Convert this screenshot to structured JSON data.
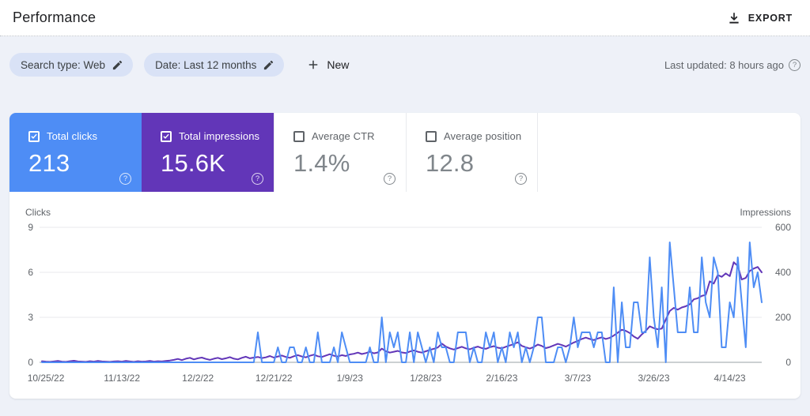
{
  "header": {
    "title": "Performance",
    "export_label": "EXPORT"
  },
  "filters": {
    "search_type_chip": "Search type: Web",
    "date_chip": "Date: Last 12 months",
    "new_label": "New",
    "last_updated": "Last updated: 8 hours ago"
  },
  "metric_cards": [
    {
      "label": "Total clicks",
      "value": "213",
      "checked": true,
      "color": "#4e8df5"
    },
    {
      "label": "Total impressions",
      "value": "15.6K",
      "checked": true,
      "color": "#6236b8"
    },
    {
      "label": "Average CTR",
      "value": "1.4%",
      "checked": false
    },
    {
      "label": "Average position",
      "value": "12.8",
      "checked": false
    }
  ],
  "chart_data": {
    "type": "line",
    "left_axis": {
      "label": "Clicks",
      "ticks": [
        9,
        6,
        3,
        0
      ],
      "max": 9
    },
    "right_axis": {
      "label": "Impressions",
      "ticks": [
        600,
        400,
        200,
        0
      ],
      "max": 600
    },
    "x_ticks": {
      "indices": [
        1,
        20,
        39,
        58,
        77,
        96,
        115,
        134,
        153,
        172
      ],
      "labels": [
        "10/25/22",
        "11/13/22",
        "12/2/22",
        "12/21/22",
        "1/9/23",
        "1/28/23",
        "2/16/23",
        "3/7/23",
        "3/26/23",
        "4/14/23"
      ]
    },
    "series": [
      {
        "name": "Total clicks",
        "color": "#4e8df5",
        "axis": "left",
        "values": [
          0,
          0,
          0,
          0,
          0,
          0,
          0,
          0,
          0,
          0,
          0,
          0,
          0,
          0,
          0,
          0,
          0,
          0,
          0,
          0,
          0,
          0,
          0,
          0,
          0,
          0,
          0,
          0,
          0,
          0,
          0,
          0,
          0,
          0,
          0,
          0,
          0,
          0,
          0,
          0,
          0,
          0,
          0,
          0,
          0,
          0,
          0,
          0,
          0,
          0,
          0,
          0,
          0,
          0,
          2,
          0,
          0,
          0,
          0,
          1,
          0,
          0,
          1,
          1,
          0,
          0,
          1,
          0,
          0,
          2,
          0,
          0,
          0,
          1,
          0,
          2,
          1,
          0,
          0,
          0,
          0,
          0,
          1,
          0,
          0,
          3,
          0,
          2,
          1,
          2,
          0,
          0,
          2,
          0,
          2,
          1,
          0,
          1,
          0,
          2,
          1,
          1,
          0,
          0,
          2,
          2,
          2,
          0,
          1,
          0,
          0,
          2,
          1,
          2,
          0,
          1,
          0,
          2,
          1,
          2,
          0,
          1,
          0,
          1,
          3,
          3,
          0,
          0,
          0,
          1,
          1,
          0,
          1,
          3,
          1,
          2,
          2,
          2,
          1,
          2,
          2,
          0,
          0,
          5,
          0,
          4,
          1,
          1,
          4,
          4,
          2,
          2,
          7,
          3,
          1,
          5,
          0,
          8,
          5,
          2,
          2,
          2,
          5,
          2,
          2,
          7,
          4,
          3,
          7,
          6,
          1,
          1,
          4,
          3,
          7,
          4,
          1,
          8,
          5,
          6,
          4
        ]
      },
      {
        "name": "Total impressions",
        "color": "#6236b8",
        "axis": "right",
        "values": [
          5,
          3,
          2,
          4,
          6,
          3,
          2,
          5,
          7,
          4,
          3,
          2,
          5,
          3,
          6,
          4,
          3,
          2,
          4,
          5,
          3,
          6,
          4,
          2,
          5,
          3,
          4,
          6,
          3,
          5,
          4,
          6,
          8,
          11,
          15,
          10,
          16,
          20,
          13,
          18,
          21,
          15,
          11,
          16,
          20,
          14,
          18,
          23,
          16,
          13,
          20,
          25,
          18,
          21,
          24,
          19,
          22,
          28,
          21,
          26,
          30,
          24,
          20,
          27,
          32,
          26,
          22,
          29,
          34,
          27,
          24,
          30,
          36,
          29,
          26,
          32,
          28,
          35,
          38,
          43,
          37,
          41,
          47,
          40,
          44,
          61,
          49,
          43,
          47,
          51,
          44,
          41,
          48,
          53,
          47,
          43,
          49,
          55,
          60,
          66,
          83,
          70,
          62,
          57,
          63,
          69,
          62,
          58,
          65,
          70,
          63,
          60,
          67,
          72,
          65,
          62,
          69,
          75,
          81,
          89,
          73,
          67,
          61,
          68,
          79,
          73,
          63,
          68,
          75,
          82,
          77,
          70,
          79,
          88,
          95,
          104,
          110,
          104,
          99,
          106,
          111,
          104,
          109,
          119,
          132,
          145,
          140,
          130,
          115,
          105,
          124,
          140,
          160,
          152,
          147,
          150,
          190,
          228,
          242,
          234,
          244,
          249,
          258,
          280,
          285,
          295,
          300,
          360,
          350,
          388,
          380,
          395,
          383,
          445,
          428,
          368,
          375,
          406,
          417,
          424,
          400
        ]
      }
    ]
  }
}
